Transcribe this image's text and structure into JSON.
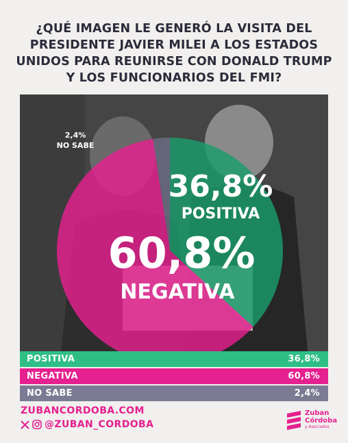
{
  "title": "¿QUÉ IMAGEN LE GENERÓ LA VISITA DEL PRESIDENTE JAVIER MILEI A LOS ESTADOS UNIDOS PARA REUNIRSE CON DONALD TRUMP Y LOS FUNCIONARIOS DEL FMI?",
  "chart_data": {
    "type": "pie",
    "title": "¿QUÉ IMAGEN LE GENERÓ LA VISITA DEL PRESIDENTE JAVIER MILEI A LOS ESTADOS UNIDOS PARA REUNIRSE CON DONALD TRUMP Y LOS FUNCIONARIOS DEL FMI?",
    "slices": [
      {
        "label": "POSITIVA",
        "value": 36.8,
        "display": "36,8%",
        "color": "#1b9e6c"
      },
      {
        "label": "NEGATIVA",
        "value": 60.8,
        "display": "60,8%",
        "color": "#e5208f"
      },
      {
        "label": "NO SABE",
        "value": 2.4,
        "display": "2,4%",
        "color": "#6d6d86"
      }
    ]
  },
  "legend": [
    {
      "label": "POSITIVA",
      "value": "36,8%",
      "color": "#2fbf85"
    },
    {
      "label": "NEGATIVA",
      "value": "60,8%",
      "color": "#e5208f"
    },
    {
      "label": "NO SABE",
      "value": "2,4%",
      "color": "#7b7b93"
    }
  ],
  "footer": {
    "website": "ZUBANCORDOBA.COM",
    "handle": "@ZUBAN_CORDOBA",
    "brand_line1": "Zuban",
    "brand_line2": "Córdoba",
    "brand_line3": "y Asociados"
  },
  "colors": {
    "accent": "#e5208f",
    "positive": "#1b9e6c",
    "unknown": "#6d6d86"
  }
}
